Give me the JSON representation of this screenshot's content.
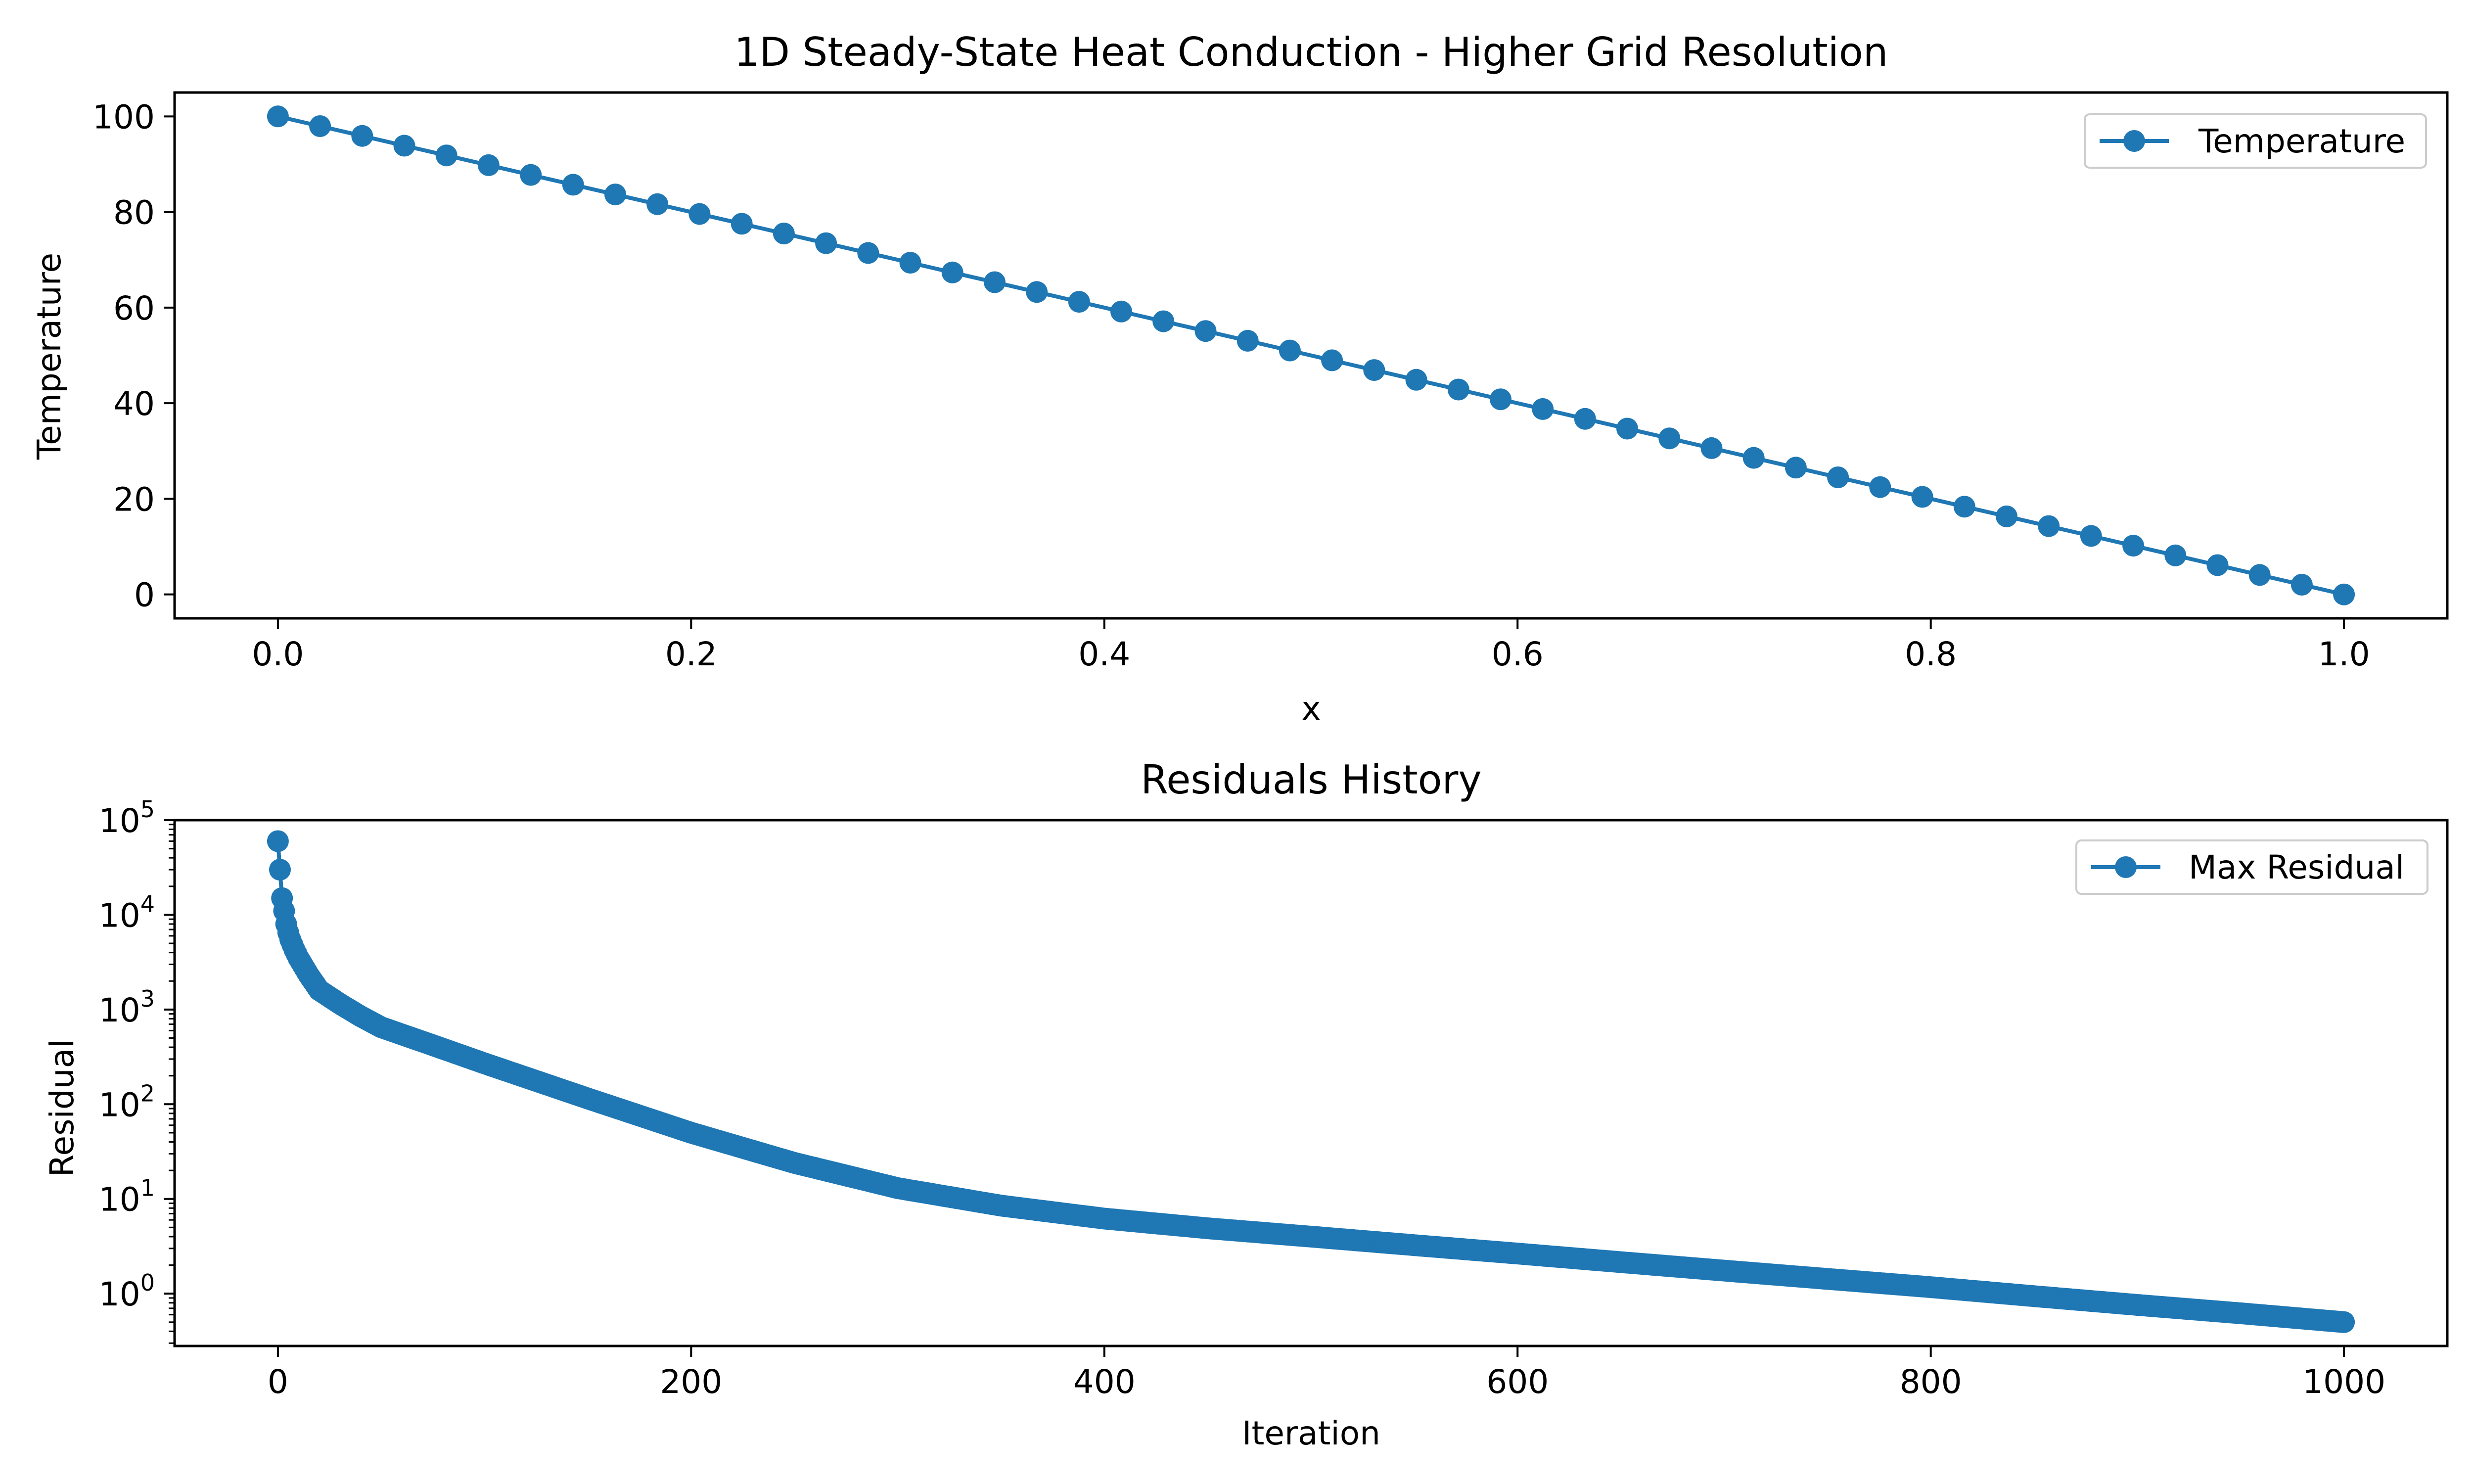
{
  "chart_data": [
    {
      "type": "line",
      "title": "1D Steady-State Heat Conduction - Higher Grid Resolution",
      "xlabel": "x",
      "ylabel": "Temperature",
      "xlim": [
        -0.05,
        1.05
      ],
      "ylim": [
        -5,
        105
      ],
      "x_ticks": [
        0.0,
        0.2,
        0.4,
        0.6,
        0.8,
        1.0
      ],
      "x_tick_labels": [
        "0.0",
        "0.2",
        "0.4",
        "0.6",
        "0.8",
        "1.0"
      ],
      "y_ticks": [
        0,
        20,
        40,
        60,
        80,
        100
      ],
      "y_tick_labels": [
        "0",
        "20",
        "40",
        "60",
        "80",
        "100"
      ],
      "grid": false,
      "legend": {
        "position": "top-right",
        "entries": [
          "Temperature"
        ]
      },
      "series": [
        {
          "name": "Temperature",
          "color": "#1f77b4",
          "marker": "circle",
          "x": [
            0.0,
            0.0204,
            0.0408,
            0.0612,
            0.0816,
            0.102,
            0.1224,
            0.1429,
            0.1633,
            0.1837,
            0.2041,
            0.2245,
            0.2449,
            0.2653,
            0.2857,
            0.3061,
            0.3265,
            0.3469,
            0.3673,
            0.3878,
            0.4082,
            0.4286,
            0.449,
            0.4694,
            0.4898,
            0.5102,
            0.5306,
            0.551,
            0.5714,
            0.5918,
            0.6122,
            0.6327,
            0.6531,
            0.6735,
            0.6939,
            0.7143,
            0.7347,
            0.7551,
            0.7755,
            0.7959,
            0.8163,
            0.8367,
            0.8571,
            0.8776,
            0.898,
            0.9184,
            0.9388,
            0.9592,
            0.9796,
            1.0
          ],
          "y": [
            100.0,
            97.96,
            95.92,
            93.88,
            91.84,
            89.8,
            87.76,
            85.71,
            83.67,
            81.63,
            79.59,
            77.55,
            75.51,
            73.47,
            71.43,
            69.39,
            67.35,
            65.31,
            63.27,
            61.22,
            59.18,
            57.14,
            55.1,
            53.06,
            51.02,
            48.98,
            46.94,
            44.9,
            42.86,
            40.82,
            38.78,
            36.73,
            34.69,
            32.65,
            30.61,
            28.57,
            26.53,
            24.49,
            22.45,
            20.41,
            18.37,
            16.33,
            14.29,
            12.24,
            10.2,
            8.16,
            6.12,
            4.08,
            2.04,
            0.0
          ]
        }
      ]
    },
    {
      "type": "line",
      "title": "Residuals History",
      "xlabel": "Iteration",
      "ylabel": "Residual",
      "yscale": "log",
      "xlim": [
        -50,
        1050
      ],
      "ylim": [
        0.28,
        100000
      ],
      "x_ticks": [
        0,
        200,
        400,
        600,
        800,
        1000
      ],
      "x_tick_labels": [
        "0",
        "200",
        "400",
        "600",
        "800",
        "1000"
      ],
      "y_ticks": [
        1,
        10,
        100,
        1000,
        10000,
        100000
      ],
      "y_tick_labels": [
        {
          "base": "10",
          "exp": "0"
        },
        {
          "base": "10",
          "exp": "1"
        },
        {
          "base": "10",
          "exp": "2"
        },
        {
          "base": "10",
          "exp": "3"
        },
        {
          "base": "10",
          "exp": "4"
        },
        {
          "base": "10",
          "exp": "5"
        }
      ],
      "grid": false,
      "legend": {
        "position": "top-right",
        "entries": [
          "Max Residual"
        ]
      },
      "series": [
        {
          "name": "Max Residual",
          "color": "#1f77b4",
          "marker": "circle",
          "x": [
            0,
            1,
            2,
            3,
            4,
            5,
            6,
            8,
            10,
            15,
            20,
            30,
            40,
            50,
            75,
            100,
            150,
            200,
            250,
            300,
            350,
            400,
            450,
            500,
            550,
            600,
            650,
            700,
            750,
            800,
            850,
            900,
            950,
            1000
          ],
          "y": [
            60000,
            30000,
            15000,
            11000,
            8000,
            6500,
            5500,
            4300,
            3500,
            2300,
            1600,
            1150,
            850,
            650,
            420,
            270,
            115,
            50,
            24,
            13,
            8.5,
            6.2,
            4.9,
            4.0,
            3.25,
            2.65,
            2.15,
            1.75,
            1.43,
            1.17,
            0.94,
            0.76,
            0.62,
            0.5
          ]
        }
      ]
    }
  ]
}
